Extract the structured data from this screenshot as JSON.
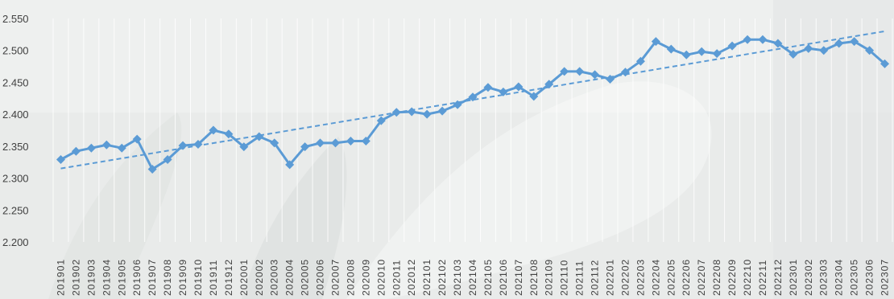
{
  "chart_data": {
    "type": "line",
    "title": "",
    "xlabel": "",
    "ylabel": "",
    "ylim": [
      2.2,
      2.55
    ],
    "y_ticks": [
      "2.200",
      "2.250",
      "2.300",
      "2.350",
      "2.400",
      "2.450",
      "2.500",
      "2.550"
    ],
    "grid": "vertical",
    "legend": "none",
    "series_color": "#5b9bd5",
    "categories": [
      "201901",
      "201902",
      "201903",
      "201904",
      "201905",
      "201906",
      "201907",
      "201908",
      "201909",
      "201910",
      "201911",
      "201912",
      "202001",
      "202002",
      "202003",
      "202004",
      "202005",
      "202006",
      "202007",
      "202008",
      "202009",
      "202010",
      "202011",
      "202012",
      "202101",
      "202102",
      "202103",
      "202104",
      "202105",
      "202106",
      "202107",
      "202108",
      "202109",
      "202110",
      "202111",
      "202112",
      "202201",
      "202202",
      "202203",
      "202204",
      "202205",
      "202206",
      "202207",
      "202208",
      "202209",
      "202210",
      "202211",
      "202212",
      "202301",
      "202302",
      "202303",
      "202304",
      "202305",
      "202306",
      "202307"
    ],
    "series": [
      {
        "marker": "diamond",
        "values": [
          2.329,
          2.342,
          2.347,
          2.352,
          2.347,
          2.361,
          2.314,
          2.329,
          2.351,
          2.353,
          2.375,
          2.369,
          2.349,
          2.365,
          2.355,
          2.321,
          2.349,
          2.355,
          2.355,
          2.358,
          2.358,
          2.39,
          2.403,
          2.404,
          2.4,
          2.405,
          2.415,
          2.427,
          2.442,
          2.435,
          2.443,
          2.428,
          2.447,
          2.467,
          2.467,
          2.462,
          2.455,
          2.466,
          2.483,
          2.514,
          2.502,
          2.493,
          2.498,
          2.495,
          2.507,
          2.517,
          2.517,
          2.511,
          2.494,
          2.503,
          2.5,
          2.511,
          2.514,
          2.5,
          2.479
        ]
      }
    ],
    "trendline": {
      "style": "dashed",
      "start": 2.315,
      "end": 2.53
    }
  }
}
